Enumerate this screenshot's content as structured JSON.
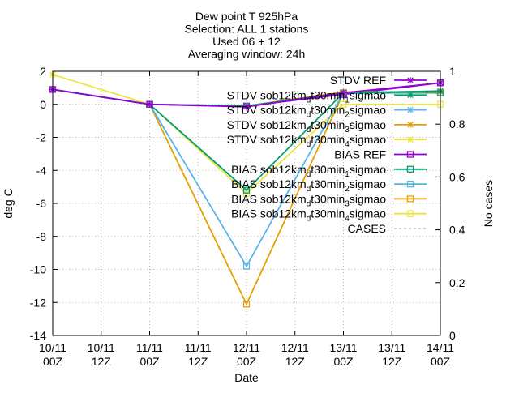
{
  "chart_data": {
    "type": "line",
    "title": [
      "Dew point T 925hPa",
      "Selection: ALL       1 stations",
      "Used 06 + 12",
      "Averaging window: 24h"
    ],
    "xlabel": "Date",
    "ylabel": "deg C",
    "y2label": "No cases",
    "x_ticks": [
      {
        "x": 0.0,
        "line1": "10/11",
        "line2": "00Z"
      },
      {
        "x": 0.5,
        "line1": "10/11",
        "line2": "12Z"
      },
      {
        "x": 1.0,
        "line1": "11/11",
        "line2": "00Z"
      },
      {
        "x": 1.5,
        "line1": "11/11",
        "line2": "12Z"
      },
      {
        "x": 2.0,
        "line1": "12/11",
        "line2": "00Z"
      },
      {
        "x": 2.5,
        "line1": "12/11",
        "line2": "12Z"
      },
      {
        "x": 3.0,
        "line1": "13/11",
        "line2": "00Z"
      },
      {
        "x": 3.5,
        "line1": "13/11",
        "line2": "12Z"
      },
      {
        "x": 4.0,
        "line1": "14/11",
        "line2": "00Z"
      }
    ],
    "xlim": [
      0,
      4
    ],
    "ylim": [
      -14,
      2
    ],
    "y_ticks": [
      2,
      0,
      -2,
      -4,
      -6,
      -8,
      -10,
      -12,
      -14
    ],
    "y2lim": [
      0,
      1
    ],
    "y2_ticks": [
      {
        "v": 0,
        "label": "0"
      },
      {
        "v": 0.2,
        "label": "0.2"
      },
      {
        "v": 0.4,
        "label": "0.4"
      },
      {
        "v": 0.6,
        "label": "0.6"
      },
      {
        "v": 0.8,
        "label": "0.8"
      },
      {
        "v": 1,
        "label": "1"
      }
    ],
    "grid": true,
    "legend_position": "top-right",
    "series": [
      {
        "name": "STDV REF",
        "name_parts": [
          [
            "STDV REF",
            ""
          ]
        ],
        "color": "#9400d3",
        "marker": "star",
        "x": [
          0,
          1,
          2,
          3,
          4
        ],
        "y": [
          0.9,
          0.0,
          -0.15,
          0.7,
          1.3
        ]
      },
      {
        "name": "STDV sob12km_d_t30min_1_sigmao",
        "name_parts": [
          [
            "STDV sob12km",
            ""
          ],
          [
            "d",
            "sub"
          ],
          [
            "t30min",
            ""
          ],
          [
            "1",
            "sub"
          ],
          [
            "sigmao",
            ""
          ]
        ],
        "color": "#009e73",
        "marker": "star",
        "x": [
          0,
          1,
          2,
          3,
          4
        ],
        "y": [
          0.9,
          0.0,
          -0.1,
          0.7,
          0.8
        ]
      },
      {
        "name": "STDV sob12km_d_t30min_2_sigmao",
        "name_parts": [
          [
            "STDV sob12km",
            ""
          ],
          [
            "d",
            "sub"
          ],
          [
            "t30min",
            ""
          ],
          [
            "2",
            "sub"
          ],
          [
            "sigmao",
            ""
          ]
        ],
        "color": "#56b4e9",
        "marker": "star",
        "x": [
          0,
          1,
          2,
          3,
          4
        ],
        "y": [
          0.9,
          0.0,
          -0.1,
          0.7,
          0.8
        ]
      },
      {
        "name": "STDV sob12km_d_t30min_3_sigmao",
        "name_parts": [
          [
            "STDV sob12km",
            ""
          ],
          [
            "d",
            "sub"
          ],
          [
            "t30min",
            ""
          ],
          [
            "3",
            "sub"
          ],
          [
            "sigmao",
            ""
          ]
        ],
        "color": "#e69f00",
        "marker": "star",
        "x": [
          0,
          1,
          2,
          3,
          4
        ],
        "y": [
          0.9,
          0.0,
          -0.1,
          0.75,
          0.75
        ]
      },
      {
        "name": "STDV sob12km_d_t30min_4_sigmao",
        "name_parts": [
          [
            "STDV sob12km",
            ""
          ],
          [
            "d",
            "sub"
          ],
          [
            "t30min",
            ""
          ],
          [
            "4",
            "sub"
          ],
          [
            "sigmao",
            ""
          ]
        ],
        "color": "#f0e442",
        "marker": "star",
        "x": [
          0,
          1,
          2,
          3,
          4
        ],
        "y": [
          1.8,
          0.0,
          -0.1,
          0.75,
          0.75
        ]
      },
      {
        "name": "BIAS REF",
        "name_parts": [
          [
            "BIAS REF",
            ""
          ]
        ],
        "color": "#9400d3",
        "marker": "square",
        "x": [
          0,
          1,
          2,
          3,
          4
        ],
        "y": [
          0.9,
          0.0,
          -0.1,
          0.6,
          1.3
        ]
      },
      {
        "name": "BIAS sob12km_d_t30min_1_sigmao",
        "name_parts": [
          [
            "BIAS sob12km",
            ""
          ],
          [
            "d",
            "sub"
          ],
          [
            "t30min",
            ""
          ],
          [
            "1",
            "sub"
          ],
          [
            "sigmao",
            ""
          ]
        ],
        "color": "#009e73",
        "marker": "square",
        "x": [
          1,
          2,
          3,
          4
        ],
        "y": [
          0.0,
          -5.2,
          0.7,
          0.7
        ]
      },
      {
        "name": "BIAS sob12km_d_t30min_2_sigmao",
        "name_parts": [
          [
            "BIAS sob12km",
            ""
          ],
          [
            "d",
            "sub"
          ],
          [
            "t30min",
            ""
          ],
          [
            "2",
            "sub"
          ],
          [
            "sigmao",
            ""
          ]
        ],
        "color": "#56b4e9",
        "marker": "square",
        "x": [
          1,
          2,
          3,
          4
        ],
        "y": [
          0.0,
          -9.8,
          0.7,
          0.7
        ]
      },
      {
        "name": "BIAS sob12km_d_t30min_3_sigmao",
        "name_parts": [
          [
            "BIAS sob12km",
            ""
          ],
          [
            "d",
            "sub"
          ],
          [
            "t30min",
            ""
          ],
          [
            "3",
            "sub"
          ],
          [
            "sigmao",
            ""
          ]
        ],
        "color": "#e69f00",
        "marker": "square",
        "x": [
          1,
          2,
          3,
          4
        ],
        "y": [
          0.0,
          -12.1,
          0.7,
          0.7
        ]
      },
      {
        "name": "BIAS sob12km_d_t30min_4_sigmao",
        "name_parts": [
          [
            "BIAS sob12km",
            ""
          ],
          [
            "d",
            "sub"
          ],
          [
            "t30min",
            ""
          ],
          [
            "4",
            "sub"
          ],
          [
            "sigmao",
            ""
          ]
        ],
        "color": "#f0e442",
        "marker": "square",
        "x": [
          1,
          2,
          3,
          4
        ],
        "y": [
          0.0,
          -5.4,
          0.0,
          0.0
        ]
      },
      {
        "name": "CASES",
        "name_parts": [
          [
            "CASES",
            ""
          ]
        ],
        "color": "#a0a0a0",
        "marker": "none",
        "dashed": true,
        "axis": "y2",
        "x": [
          0,
          1,
          2,
          3,
          4
        ],
        "y": [
          1,
          1,
          1,
          1,
          1
        ]
      }
    ]
  }
}
